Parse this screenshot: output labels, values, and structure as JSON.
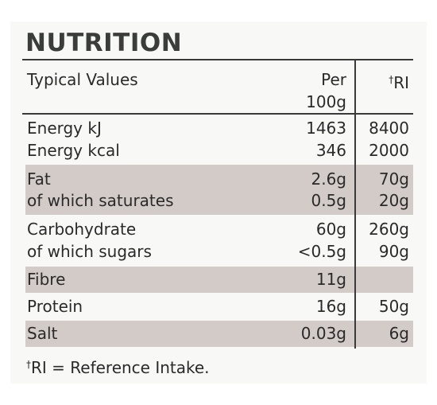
{
  "title": "NUTRITION",
  "header": {
    "label": "Typical Values",
    "per_line1": "Per",
    "per_line2": "100g",
    "ri_dagger": "†",
    "ri_label": "RI"
  },
  "groups": [
    {
      "shaded": false,
      "rows": [
        {
          "label": "Energy kJ",
          "per": "1463",
          "ri": "8400"
        },
        {
          "label": "Energy kcal",
          "per": "346",
          "ri": "2000"
        }
      ]
    },
    {
      "shaded": true,
      "rows": [
        {
          "label": "Fat",
          "per": "2.6g",
          "ri": "70g"
        },
        {
          "label": "of which saturates",
          "per": "0.5g",
          "ri": "20g"
        }
      ]
    },
    {
      "shaded": false,
      "rows": [
        {
          "label": "Carbohydrate",
          "per": "60g",
          "ri": "260g"
        },
        {
          "label": "of which sugars",
          "per": "<0.5g",
          "ri": "90g"
        }
      ]
    },
    {
      "shaded": true,
      "rows": [
        {
          "label": "Fibre",
          "per": "11g",
          "ri": ""
        }
      ]
    },
    {
      "shaded": false,
      "rows": [
        {
          "label": "Protein",
          "per": "16g",
          "ri": "50g"
        }
      ]
    },
    {
      "shaded": true,
      "rows": [
        {
          "label": "Salt",
          "per": "0.03g",
          "ri": "6g"
        }
      ]
    }
  ],
  "footnote": {
    "dagger": "†",
    "text": "RI = Reference Intake."
  }
}
